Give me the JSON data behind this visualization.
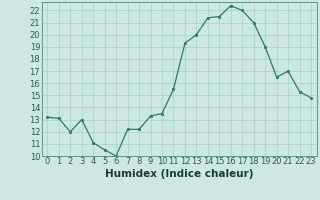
{
  "title": "",
  "xlabel": "Humidex (Indice chaleur)",
  "ylabel": "",
  "x_values": [
    0,
    1,
    2,
    3,
    4,
    5,
    6,
    7,
    8,
    9,
    10,
    11,
    12,
    13,
    14,
    15,
    16,
    17,
    18,
    19,
    20,
    21,
    22,
    23
  ],
  "y_values": [
    13.2,
    13.1,
    12.0,
    13.0,
    11.1,
    10.5,
    10.0,
    12.2,
    12.2,
    13.3,
    13.5,
    15.5,
    19.3,
    20.0,
    21.4,
    21.5,
    22.4,
    22.0,
    21.0,
    19.0,
    16.5,
    17.0,
    15.3,
    14.8
  ],
  "line_color": "#2d7a6a",
  "marker_color": "#2d7a6a",
  "bg_color": "#cce8e4",
  "grid_color": "#aacfca",
  "ylim": [
    10,
    22.7
  ],
  "xlim": [
    -0.5,
    23.5
  ],
  "yticks": [
    10,
    11,
    12,
    13,
    14,
    15,
    16,
    17,
    18,
    19,
    20,
    21,
    22
  ],
  "xticks": [
    0,
    1,
    2,
    3,
    4,
    5,
    6,
    7,
    8,
    9,
    10,
    11,
    12,
    13,
    14,
    15,
    16,
    17,
    18,
    19,
    20,
    21,
    22,
    23
  ],
  "xlabel_fontsize": 7.5,
  "tick_fontsize": 6.0
}
